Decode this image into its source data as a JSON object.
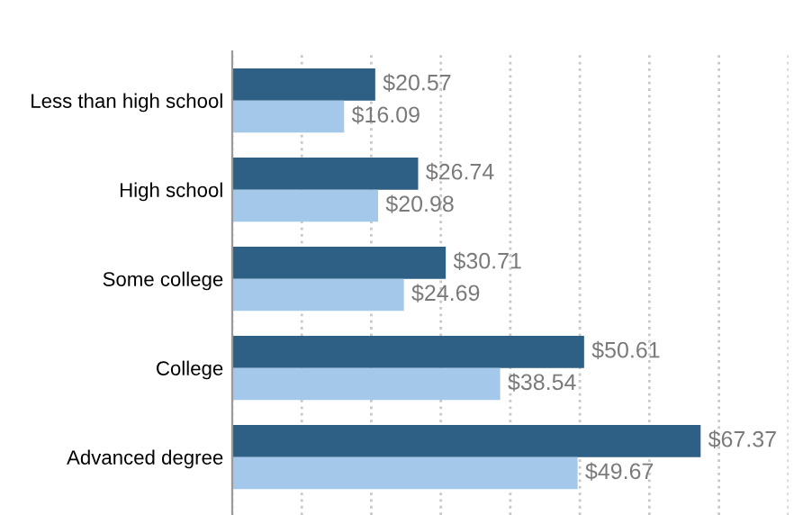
{
  "chart_data": {
    "type": "bar",
    "orientation": "horizontal",
    "categories": [
      "Less than high school",
      "High school",
      "Some college",
      "College",
      "Advanced degree"
    ],
    "series": [
      {
        "color": "#2e5f85",
        "values": [
          20.57,
          26.74,
          30.71,
          50.61,
          67.37
        ],
        "value_labels": [
          "$20.57",
          "$26.74",
          "$30.71",
          "$50.61",
          "$67.37"
        ]
      },
      {
        "color": "#a4c8ea",
        "values": [
          16.09,
          20.98,
          24.69,
          38.54,
          49.67
        ],
        "value_labels": [
          "$16.09",
          "$20.98",
          "$24.69",
          "$38.54",
          "$49.67"
        ]
      }
    ],
    "xlim": [
      0,
      80
    ],
    "xticks": [
      0,
      10,
      20,
      30,
      40,
      50,
      60,
      70,
      80
    ],
    "grid": "x",
    "tick_labels": "y",
    "legend": false
  }
}
